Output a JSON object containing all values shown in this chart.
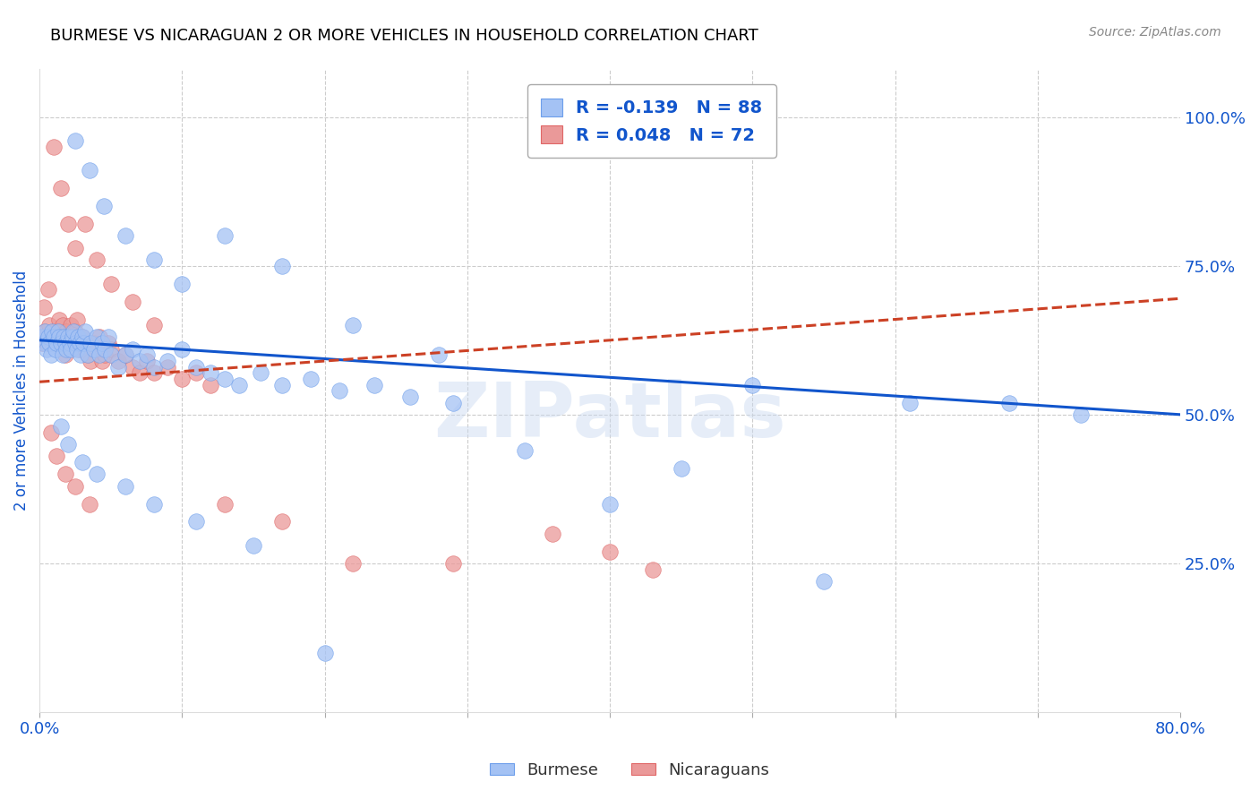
{
  "title": "BURMESE VS NICARAGUAN 2 OR MORE VEHICLES IN HOUSEHOLD CORRELATION CHART",
  "source": "Source: ZipAtlas.com",
  "ylabel": "2 or more Vehicles in Household",
  "xlim": [
    0.0,
    0.8
  ],
  "ylim": [
    0.0,
    1.08
  ],
  "ytick_labels_right": [
    "100.0%",
    "75.0%",
    "50.0%",
    "25.0%"
  ],
  "ytick_vals_right": [
    1.0,
    0.75,
    0.5,
    0.25
  ],
  "blue_color": "#a4c2f4",
  "blue_edge": "#6d9eeb",
  "pink_color": "#ea9999",
  "pink_edge": "#e06666",
  "trend_blue": "#1155cc",
  "trend_pink": "#cc4125",
  "watermark": "ZIPatlas",
  "burmese_x": [
    0.002,
    0.003,
    0.004,
    0.005,
    0.006,
    0.007,
    0.008,
    0.009,
    0.01,
    0.011,
    0.012,
    0.013,
    0.014,
    0.015,
    0.016,
    0.017,
    0.018,
    0.019,
    0.02,
    0.021,
    0.022,
    0.023,
    0.024,
    0.025,
    0.026,
    0.027,
    0.028,
    0.029,
    0.03,
    0.031,
    0.032,
    0.034,
    0.036,
    0.038,
    0.04,
    0.042,
    0.044,
    0.046,
    0.048,
    0.05,
    0.055,
    0.06,
    0.065,
    0.07,
    0.075,
    0.08,
    0.09,
    0.1,
    0.11,
    0.12,
    0.13,
    0.14,
    0.155,
    0.17,
    0.19,
    0.21,
    0.235,
    0.26,
    0.29,
    0.025,
    0.035,
    0.045,
    0.06,
    0.08,
    0.1,
    0.13,
    0.17,
    0.22,
    0.28,
    0.34,
    0.4,
    0.45,
    0.5,
    0.55,
    0.61,
    0.68,
    0.73,
    0.015,
    0.02,
    0.03,
    0.04,
    0.06,
    0.08,
    0.11,
    0.15,
    0.2
  ],
  "burmese_y": [
    0.63,
    0.62,
    0.64,
    0.61,
    0.63,
    0.62,
    0.6,
    0.64,
    0.63,
    0.61,
    0.62,
    0.64,
    0.63,
    0.62,
    0.6,
    0.63,
    0.62,
    0.61,
    0.63,
    0.62,
    0.61,
    0.63,
    0.64,
    0.62,
    0.61,
    0.63,
    0.62,
    0.6,
    0.63,
    0.62,
    0.64,
    0.6,
    0.62,
    0.61,
    0.63,
    0.6,
    0.62,
    0.61,
    0.63,
    0.6,
    0.58,
    0.6,
    0.61,
    0.59,
    0.6,
    0.58,
    0.59,
    0.61,
    0.58,
    0.57,
    0.56,
    0.55,
    0.57,
    0.55,
    0.56,
    0.54,
    0.55,
    0.53,
    0.52,
    0.96,
    0.91,
    0.85,
    0.8,
    0.76,
    0.72,
    0.8,
    0.75,
    0.65,
    0.6,
    0.44,
    0.35,
    0.41,
    0.55,
    0.22,
    0.52,
    0.52,
    0.5,
    0.48,
    0.45,
    0.42,
    0.4,
    0.38,
    0.35,
    0.32,
    0.28,
    0.1
  ],
  "nicaraguan_x": [
    0.002,
    0.003,
    0.004,
    0.005,
    0.006,
    0.007,
    0.008,
    0.009,
    0.01,
    0.011,
    0.012,
    0.013,
    0.014,
    0.015,
    0.016,
    0.017,
    0.018,
    0.019,
    0.02,
    0.021,
    0.022,
    0.023,
    0.024,
    0.025,
    0.026,
    0.027,
    0.028,
    0.03,
    0.032,
    0.034,
    0.036,
    0.038,
    0.04,
    0.042,
    0.044,
    0.046,
    0.048,
    0.05,
    0.055,
    0.06,
    0.065,
    0.07,
    0.075,
    0.08,
    0.09,
    0.1,
    0.11,
    0.12,
    0.01,
    0.015,
    0.02,
    0.025,
    0.032,
    0.04,
    0.05,
    0.065,
    0.08,
    0.008,
    0.012,
    0.018,
    0.025,
    0.035,
    0.4,
    0.43,
    0.36,
    0.29,
    0.22,
    0.17,
    0.13
  ],
  "nicaraguan_y": [
    0.62,
    0.68,
    0.64,
    0.62,
    0.71,
    0.65,
    0.63,
    0.62,
    0.64,
    0.63,
    0.62,
    0.64,
    0.66,
    0.63,
    0.65,
    0.62,
    0.6,
    0.64,
    0.63,
    0.62,
    0.65,
    0.63,
    0.62,
    0.64,
    0.66,
    0.62,
    0.61,
    0.63,
    0.61,
    0.6,
    0.59,
    0.62,
    0.61,
    0.63,
    0.59,
    0.6,
    0.62,
    0.61,
    0.59,
    0.6,
    0.58,
    0.57,
    0.59,
    0.57,
    0.58,
    0.56,
    0.57,
    0.55,
    0.95,
    0.88,
    0.82,
    0.78,
    0.82,
    0.76,
    0.72,
    0.69,
    0.65,
    0.47,
    0.43,
    0.4,
    0.38,
    0.35,
    0.27,
    0.24,
    0.3,
    0.25,
    0.25,
    0.32,
    0.35
  ],
  "background_color": "#ffffff",
  "grid_color": "#cccccc",
  "title_color": "#000000",
  "axis_color": "#1155cc",
  "trend_blue_start_y": 0.625,
  "trend_blue_end_y": 0.5,
  "trend_pink_start_y": 0.555,
  "trend_pink_end_y": 0.695
}
